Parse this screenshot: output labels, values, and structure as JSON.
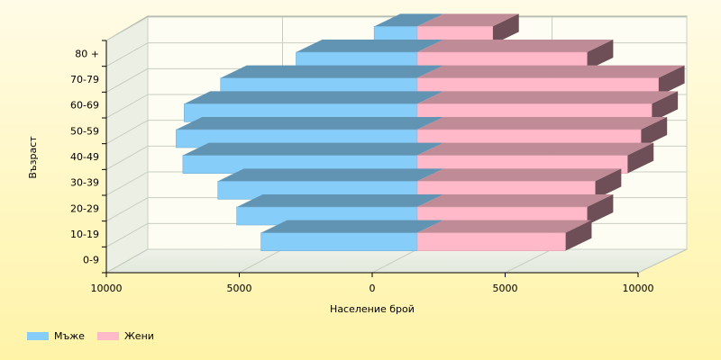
{
  "chart_data": {
    "type": "bar",
    "orientation": "horizontal",
    "style": "3d",
    "categories": [
      "0-9",
      "10-19",
      "20-29",
      "30-39",
      "40-49",
      "50-59",
      "60-69",
      "70-79",
      "80 +"
    ],
    "series": [
      {
        "name": "Мъже",
        "color": "#87cdf9",
        "values": [
          5800,
          6700,
          7400,
          8700,
          8950,
          8650,
          7300,
          4500,
          1600
        ]
      },
      {
        "name": "Жени",
        "color": "#ffb9c8",
        "values": [
          5500,
          6300,
          6600,
          7800,
          8300,
          8700,
          8950,
          6300,
          2800
        ]
      }
    ],
    "xlabel": "Население брой",
    "ylabel": "Възраст",
    "x_ticks": [
      "10000",
      "5000",
      "0",
      "5000",
      "10000"
    ],
    "xlim": [
      -10000,
      10000
    ],
    "grid": true,
    "legend": "bottom-left"
  }
}
